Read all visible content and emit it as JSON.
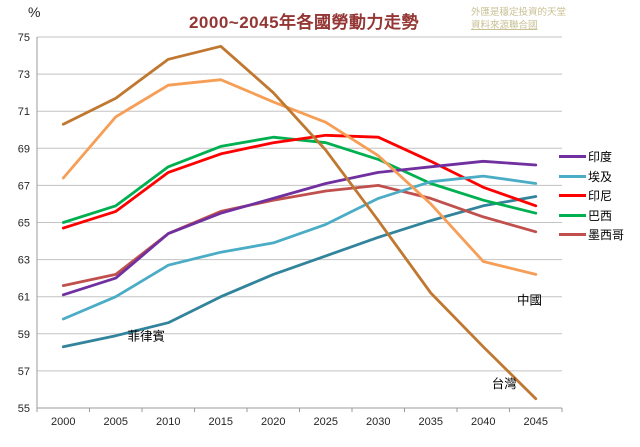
{
  "header": {
    "percent_label": "%",
    "title": "2000~2045年各國勞動力走勢",
    "watermark_line1": "外匯是穩定投資的天堂",
    "watermark_line2": "資料來源聯合國"
  },
  "colors": {
    "title": "#943634",
    "watermark": "#c9c094",
    "gridline": "#c3c3c3",
    "axis": "#9b9b9b",
    "tick_text": "#262626",
    "annotation_text": "#000000"
  },
  "chart_data": {
    "type": "line",
    "title": "2000~2045年各國勞動力走勢",
    "xlabel": "",
    "ylabel": "%",
    "ylim": [
      55,
      75
    ],
    "y_tick_step": 2,
    "grid": true,
    "legend_position": "right",
    "categories": [
      2000,
      2005,
      2010,
      2015,
      2020,
      2025,
      2030,
      2035,
      2040,
      2045
    ],
    "series": [
      {
        "name": "菲律賓",
        "color": "#31849b",
        "in_legend": false,
        "values": [
          58.3,
          58.9,
          59.6,
          61.0,
          62.2,
          63.2,
          64.2,
          65.1,
          65.9,
          66.4
        ]
      },
      {
        "name": "墨西哥",
        "color": "#c0504d",
        "in_legend": true,
        "values": [
          61.6,
          62.2,
          64.4,
          65.6,
          66.2,
          66.7,
          67.0,
          66.3,
          65.3,
          64.5
        ]
      },
      {
        "name": "巴西",
        "color": "#00b050",
        "in_legend": true,
        "values": [
          65.0,
          65.9,
          68.0,
          69.1,
          69.6,
          69.3,
          68.4,
          67.1,
          66.2,
          65.5
        ]
      },
      {
        "name": "印尼",
        "color": "#fe0000",
        "in_legend": true,
        "values": [
          64.7,
          65.6,
          67.7,
          68.7,
          69.3,
          69.7,
          69.6,
          68.3,
          66.9,
          65.9
        ]
      },
      {
        "name": "埃及",
        "color": "#4bacc6",
        "in_legend": true,
        "values": [
          59.8,
          61.0,
          62.7,
          63.4,
          63.9,
          64.9,
          66.3,
          67.2,
          67.5,
          67.1
        ]
      },
      {
        "name": "印度",
        "color": "#7030a0",
        "in_legend": true,
        "values": [
          61.1,
          62.0,
          64.4,
          65.5,
          66.3,
          67.1,
          67.7,
          68.0,
          68.3,
          68.1
        ]
      },
      {
        "name": "中國",
        "color": "#f79e56",
        "in_legend": false,
        "values": [
          67.4,
          70.7,
          72.4,
          72.7,
          71.5,
          70.4,
          68.6,
          66.0,
          62.9,
          62.2
        ]
      },
      {
        "name": "台灣",
        "color": "#c0772f",
        "in_legend": false,
        "values": [
          70.3,
          71.7,
          73.8,
          74.5,
          72.0,
          68.9,
          65.1,
          61.2,
          58.3,
          55.5
        ]
      }
    ],
    "legend_order": [
      "印度",
      "埃及",
      "印尼",
      "巴西",
      "墨西哥"
    ],
    "annotations": [
      {
        "text": "菲律賓",
        "year": 2007.9,
        "value": 58.85
      },
      {
        "text": "中國",
        "year": 2044.4,
        "value": 60.8
      },
      {
        "text": "台灣",
        "year": 2042.0,
        "value": 56.3
      }
    ]
  }
}
